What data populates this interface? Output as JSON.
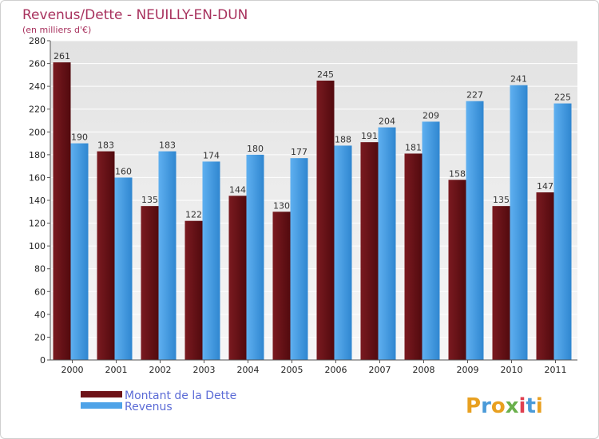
{
  "chart_data": {
    "type": "bar",
    "title": "Revenus/Dette - NEUILLY-EN-DUN",
    "subtitle": "(en milliers d'€)",
    "categories": [
      "2000",
      "2001",
      "2002",
      "2003",
      "2004",
      "2005",
      "2006",
      "2007",
      "2008",
      "2009",
      "2010",
      "2011"
    ],
    "series": [
      {
        "name": "Montant de la Dette",
        "color": "#6e1318",
        "values": [
          261,
          183,
          135,
          122,
          144,
          130,
          245,
          191,
          181,
          158,
          135,
          147
        ]
      },
      {
        "name": "Revenus",
        "color": "#4ea3e8",
        "values": [
          190,
          160,
          183,
          174,
          180,
          177,
          188,
          204,
          209,
          227,
          241,
          225
        ]
      }
    ],
    "ylim": [
      0,
      280
    ],
    "yticks": [
      0,
      20,
      40,
      60,
      80,
      100,
      120,
      140,
      160,
      180,
      200,
      220,
      240,
      260,
      280
    ],
    "grid": true,
    "legend": "bottom-left"
  },
  "logo": {
    "letters": [
      "P",
      "r",
      "o",
      "x",
      "i",
      "t",
      "i"
    ],
    "colors": [
      "#e8a020",
      "#4a9ad8",
      "#e8a020",
      "#6ab04c",
      "#e04050",
      "#4a9ad8",
      "#e8a020"
    ]
  }
}
